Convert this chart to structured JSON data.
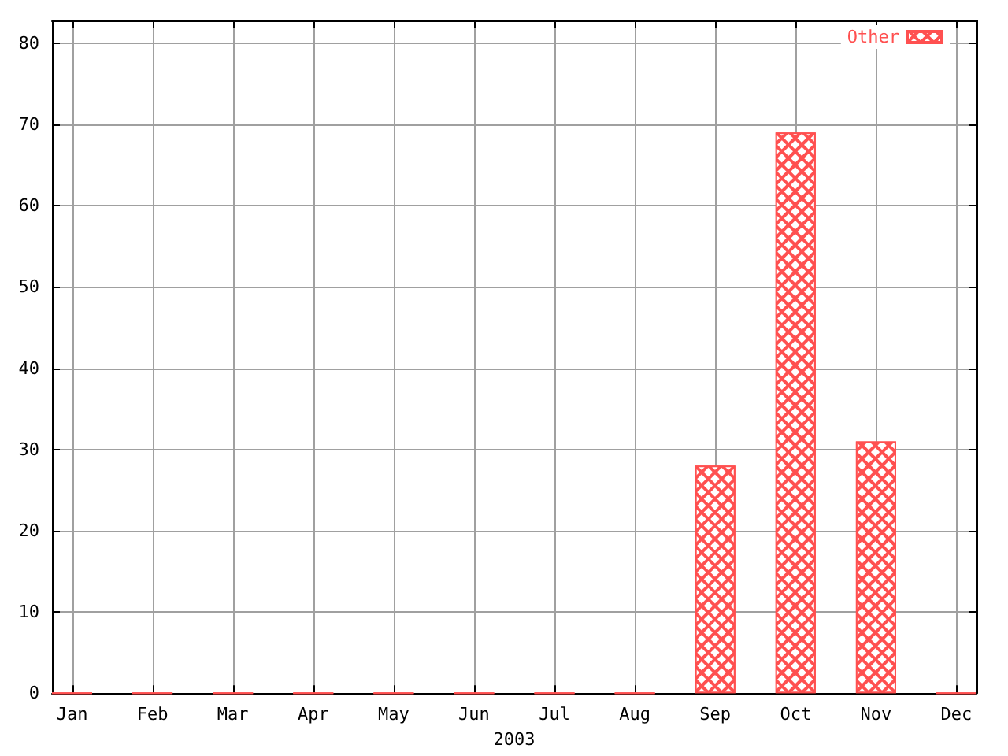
{
  "chart_data": {
    "type": "bar",
    "xlabel": "2003",
    "categories": [
      "Jan",
      "Feb",
      "Mar",
      "Apr",
      "May",
      "Jun",
      "Jul",
      "Aug",
      "Sep",
      "Oct",
      "Nov",
      "Dec"
    ],
    "series": [
      {
        "name": "Other",
        "color": "#ff5050",
        "values": [
          0,
          0,
          0,
          0,
          0,
          0,
          0,
          0,
          28,
          69,
          31,
          0
        ]
      }
    ],
    "ylim": [
      0,
      82.8
    ],
    "yticks": [
      0,
      10,
      20,
      30,
      40,
      50,
      60,
      70,
      80
    ],
    "grid": true,
    "legend": "top right"
  }
}
